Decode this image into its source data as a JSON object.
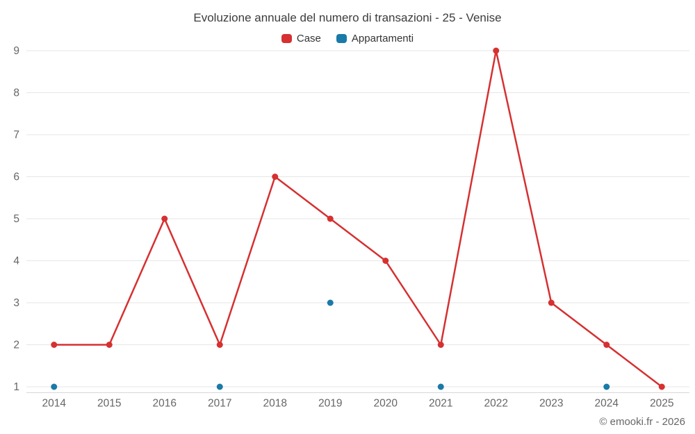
{
  "chart": {
    "title": "Evoluzione annuale del numero di transazioni - 25 - Venise",
    "footer": "© emooki.fr - 2026"
  },
  "chart_data": {
    "type": "line",
    "title": "Evoluzione annuale del numero di transazioni - 25 - Venise",
    "categories": [
      "2014",
      "2015",
      "2016",
      "2017",
      "2018",
      "2019",
      "2020",
      "2021",
      "2022",
      "2023",
      "2024",
      "2025"
    ],
    "series": [
      {
        "name": "Case",
        "color": "#d63031",
        "values": [
          2,
          2,
          5,
          2,
          6,
          5,
          4,
          2,
          9,
          3,
          2,
          1
        ]
      },
      {
        "name": "Appartamenti",
        "color": "#1a7aa8",
        "values": [
          1,
          null,
          null,
          1,
          null,
          3,
          null,
          1,
          null,
          null,
          1,
          null
        ]
      }
    ],
    "ylim": [
      1,
      9
    ],
    "yticks": [
      1,
      2,
      3,
      4,
      5,
      6,
      7,
      8,
      9
    ],
    "grid": true,
    "legend_position": "top",
    "colors": {
      "grid": "#e6e6e6",
      "axis": "#d6d6d6",
      "label": "#666666"
    }
  }
}
